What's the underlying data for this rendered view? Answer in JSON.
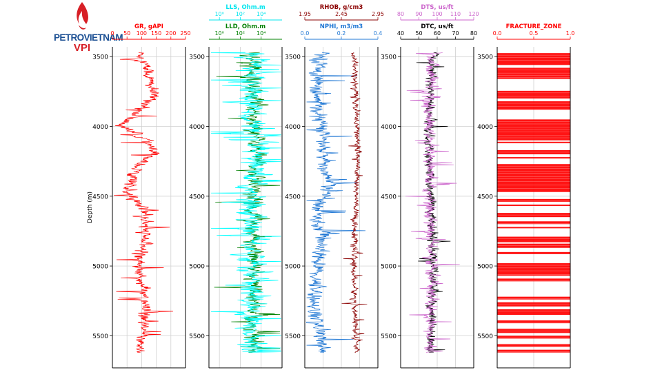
{
  "logo": {
    "name": "PETROVIETNAM",
    "sub": "VPI"
  },
  "chart_data": {
    "type": "well-log",
    "ylabel": "Depth (m)",
    "depth_range": [
      3430,
      5730
    ],
    "depth_ticks": [
      3500,
      4000,
      4500,
      5000,
      5500
    ],
    "depth_tick_labels": [
      "3500",
      "4000",
      "4500",
      "5000",
      "5500"
    ],
    "tracks": [
      {
        "name": "gr-track",
        "axes": [
          {
            "name": "gr",
            "label": "GR, gAPI",
            "color": "#ff0000",
            "scale": "linear",
            "range": [
              0,
              250
            ],
            "ticks": [
              0,
              50,
              100,
              150,
              200,
              250
            ],
            "tick_labels": [
              "0",
              "50",
              "100",
              "150",
              "200",
              "250"
            ],
            "side": "bottom"
          }
        ],
        "grid": [
          50,
          100,
          150,
          200
        ],
        "curves": [
          {
            "name": "GR",
            "color": "#ff0000",
            "base": 100,
            "noise": 25,
            "min": 5,
            "max": 240,
            "spikes": 0.04,
            "profile": [
              [
                3470,
                95
              ],
              [
                3600,
                120
              ],
              [
                3800,
                140
              ],
              [
                3990,
                30
              ],
              [
                4100,
                120
              ],
              [
                4200,
                140
              ],
              [
                4300,
                80
              ],
              [
                4400,
                70
              ],
              [
                4460,
                40
              ],
              [
                4600,
                110
              ],
              [
                4800,
                110
              ],
              [
                5050,
                90
              ],
              [
                5200,
                110
              ],
              [
                5400,
                105
              ],
              [
                5600,
                95
              ]
            ],
            "range": [
              0,
              250
            ]
          }
        ]
      },
      {
        "name": "resistivity-track",
        "axes": [
          {
            "name": "lld",
            "label": "LLD, Ohm.m",
            "color": "#008000",
            "scale": "log",
            "range": [
              -1,
              6
            ],
            "ticks": [
              0,
              2,
              4
            ],
            "tick_labels": [
              "10⁰",
              "10²",
              "10⁴"
            ],
            "side": "bottom"
          },
          {
            "name": "lls",
            "label": "LLS, Ohm.m",
            "color": "#00e5ee",
            "scale": "log",
            "range": [
              -1,
              6
            ],
            "ticks": [
              0,
              2,
              4
            ],
            "tick_labels": [
              "10⁰",
              "10²",
              "10⁴"
            ],
            "side": "top"
          }
        ],
        "grid": [
          0,
          2,
          4
        ],
        "curves": [
          {
            "name": "LLD",
            "color": "#008000",
            "base": 3.0,
            "noise": 1.0,
            "min": -0.5,
            "max": 5.8,
            "spikes": 0.03,
            "profile": [
              [
                3470,
                3.2
              ],
              [
                3800,
                3.4
              ],
              [
                4100,
                3.6
              ],
              [
                4500,
                3.3
              ],
              [
                5000,
                3.3
              ],
              [
                5600,
                3.2
              ]
            ],
            "range": [
              -1,
              6
            ]
          },
          {
            "name": "LLS",
            "color": "#00ffff",
            "base": 3.0,
            "noise": 1.6,
            "min": -0.8,
            "max": 5.9,
            "spikes": 0.05,
            "profile": [
              [
                3470,
                3.0
              ],
              [
                3800,
                3.1
              ],
              [
                4100,
                3.3
              ],
              [
                4500,
                3.0
              ],
              [
                5000,
                3.1
              ],
              [
                5600,
                3.0
              ]
            ],
            "range": [
              -1,
              6
            ]
          }
        ]
      },
      {
        "name": "density-neutron-track",
        "axes": [
          {
            "name": "nphi",
            "label": "NPHI, m3/m3",
            "color": "#1f77d4",
            "scale": "linear",
            "range": [
              0,
              0.4
            ],
            "ticks": [
              0,
              0.2,
              0.4
            ],
            "tick_labels": [
              "0.0",
              "0.2",
              "0.4"
            ],
            "side": "bottom"
          },
          {
            "name": "rhob",
            "label": "RHOB, g/cm3",
            "color": "#8b0000",
            "scale": "linear",
            "range": [
              1.95,
              2.95
            ],
            "ticks": [
              1.95,
              2.45,
              2.95
            ],
            "tick_labels": [
              "1.95",
              "2.45",
              "2.95"
            ],
            "side": "top"
          }
        ],
        "grid": [
          0.1,
          0.2,
          0.3
        ],
        "curves": [
          {
            "name": "NPHI",
            "color": "#1f77d4",
            "base": 0.1,
            "noise": 0.05,
            "min": 0.01,
            "max": 0.4,
            "spikes": 0.03,
            "profile": [
              [
                3470,
                0.1
              ],
              [
                3600,
                0.07
              ],
              [
                3900,
                0.06
              ],
              [
                4000,
                0.1
              ],
              [
                4300,
                0.1
              ],
              [
                4400,
                0.15
              ],
              [
                4600,
                0.06
              ],
              [
                4800,
                0.1
              ],
              [
                5000,
                0.07
              ],
              [
                5300,
                0.05
              ],
              [
                5600,
                0.1
              ]
            ],
            "range": [
              0,
              0.4
            ]
          },
          {
            "name": "RHOB",
            "color": "#8b0000",
            "base": 2.65,
            "noise": 0.05,
            "min": 2.2,
            "max": 2.95,
            "spikes": 0.02,
            "profile": [
              [
                3470,
                2.62
              ],
              [
                3800,
                2.65
              ],
              [
                4200,
                2.68
              ],
              [
                4600,
                2.64
              ],
              [
                5000,
                2.62
              ],
              [
                5600,
                2.65
              ]
            ],
            "range": [
              1.95,
              2.95
            ]
          }
        ]
      },
      {
        "name": "sonic-track",
        "axes": [
          {
            "name": "dtc",
            "label": "DTC, us/ft",
            "color": "#000000",
            "scale": "linear",
            "range": [
              40,
              80
            ],
            "ticks": [
              40,
              50,
              60,
              70,
              80
            ],
            "tick_labels": [
              "40",
              "50",
              "60",
              "70",
              "80"
            ],
            "side": "bottom"
          },
          {
            "name": "dts",
            "label": "DTS, us/ft",
            "color": "#cc66cc",
            "scale": "linear",
            "range": [
              80,
              120
            ],
            "ticks": [
              80,
              90,
              100,
              110,
              120
            ],
            "tick_labels": [
              "80",
              "90",
              "100",
              "110",
              "120"
            ],
            "side": "top"
          }
        ],
        "grid": [
          50,
          60,
          70
        ],
        "curves": [
          {
            "name": "DTC",
            "color": "#000000",
            "base": 56,
            "noise": 3,
            "min": 44,
            "max": 72,
            "spikes": 0.02,
            "profile": [
              [
                3470,
                58
              ],
              [
                3800,
                56
              ],
              [
                4200,
                55
              ],
              [
                4600,
                57
              ],
              [
                5000,
                58
              ],
              [
                5600,
                56
              ]
            ],
            "range": [
              40,
              80
            ]
          },
          {
            "name": "DTS",
            "color": "#cc66cc",
            "base": 97,
            "noise": 4,
            "min": 82,
            "max": 119,
            "spikes": 0.05,
            "profile": [
              [
                3470,
                98
              ],
              [
                3800,
                96
              ],
              [
                4200,
                95
              ],
              [
                4600,
                96
              ],
              [
                5000,
                97
              ],
              [
                5600,
                96
              ]
            ],
            "range": [
              80,
              120
            ]
          }
        ]
      },
      {
        "name": "fracture-track",
        "axes": [
          {
            "name": "fracture",
            "label": "FRACTURE_ZONE",
            "color": "#ff0000",
            "scale": "linear",
            "range": [
              0,
              1
            ],
            "ticks": [
              0,
              0.5,
              1
            ],
            "tick_labels": [
              "0.0",
              "0.5",
              "1.0"
            ],
            "side": "bottom"
          }
        ],
        "grid": [
          0.5
        ],
        "fracture_zones": [
          [
            3475,
            3560
          ],
          [
            3580,
            3660
          ],
          [
            3745,
            3800
          ],
          [
            3820,
            3880
          ],
          [
            3950,
            4100
          ],
          [
            4110,
            4120
          ],
          [
            4170,
            4200
          ],
          [
            4220,
            4230
          ],
          [
            4270,
            4470
          ],
          [
            4520,
            4540
          ],
          [
            4560,
            4570
          ],
          [
            4620,
            4650
          ],
          [
            4680,
            4700
          ],
          [
            4720,
            4730
          ],
          [
            4790,
            4830
          ],
          [
            4840,
            4870
          ],
          [
            4900,
            4915
          ],
          [
            4980,
            5070
          ],
          [
            5090,
            5110
          ],
          [
            5220,
            5240
          ],
          [
            5260,
            5290
          ],
          [
            5310,
            5350
          ],
          [
            5390,
            5410
          ],
          [
            5450,
            5480
          ],
          [
            5500,
            5520
          ],
          [
            5560,
            5580
          ],
          [
            5600,
            5620
          ]
        ]
      }
    ]
  }
}
